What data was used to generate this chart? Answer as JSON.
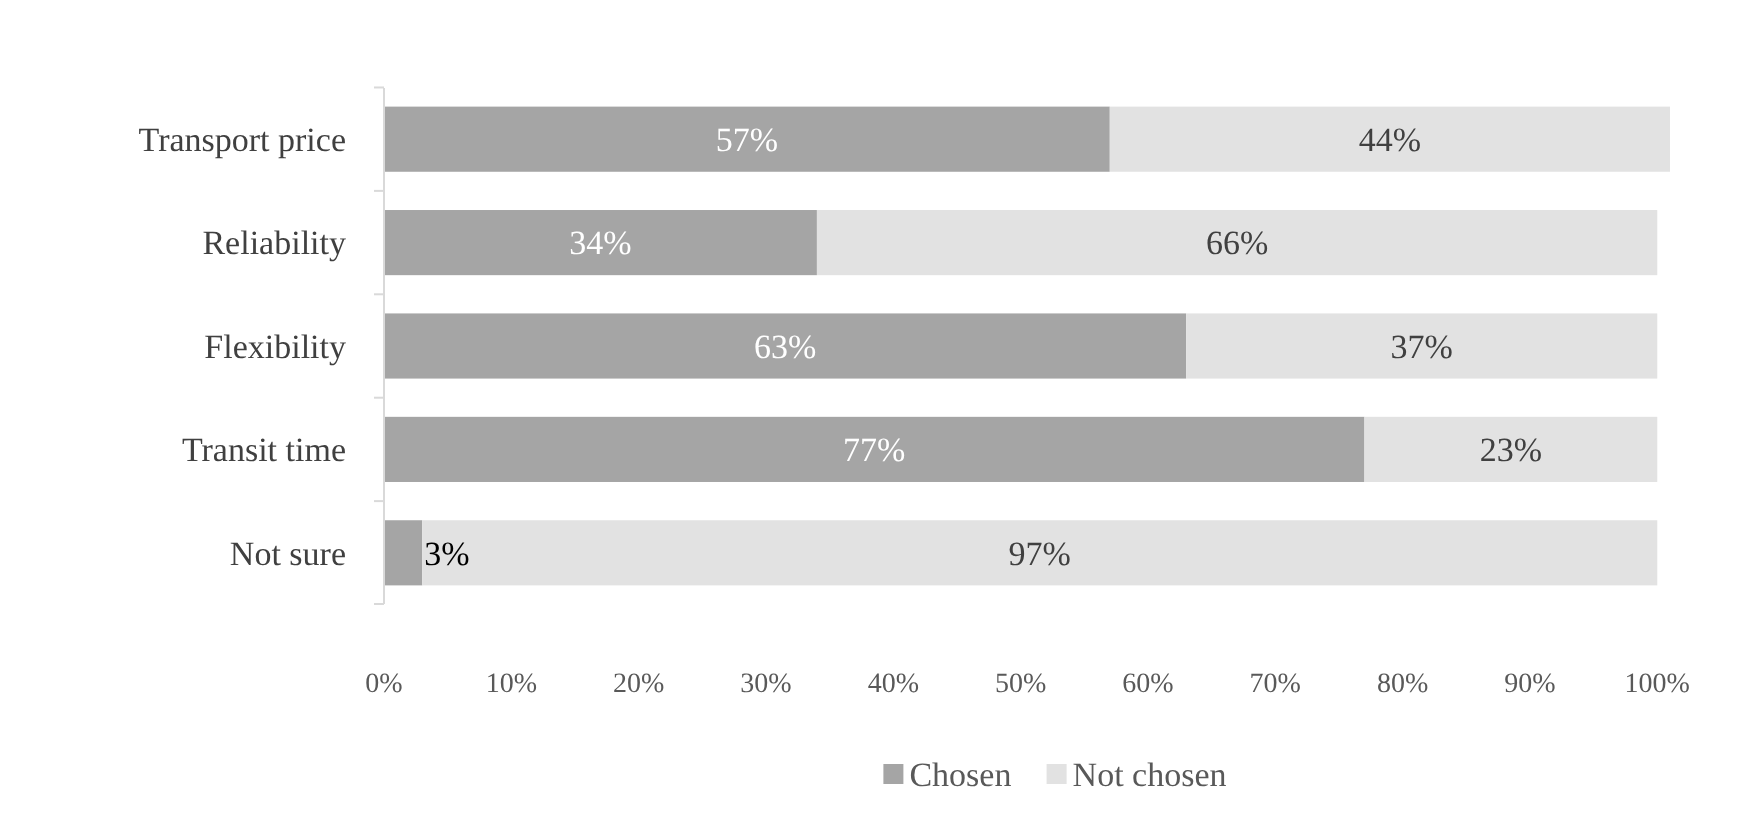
{
  "chart_data": {
    "type": "bar",
    "orientation": "horizontal",
    "stacked": true,
    "categories": [
      "Transport price",
      "Reliability",
      "Flexibility",
      "Transit time",
      "Not sure"
    ],
    "series": [
      {
        "name": "Chosen",
        "color": "#a5a5a5",
        "values": [
          57,
          34,
          63,
          77,
          3
        ],
        "value_labels": [
          "57%",
          "34%",
          "63%",
          "77%",
          "3%"
        ]
      },
      {
        "name": "Not chosen",
        "color": "#e2e2e2",
        "values": [
          44,
          66,
          37,
          23,
          97
        ],
        "value_labels": [
          "44%",
          "66%",
          "37%",
          "23%",
          "97%"
        ]
      }
    ],
    "xlim": [
      0,
      101
    ],
    "xticks": [
      {
        "value": 0,
        "label": "0%"
      },
      {
        "value": 10,
        "label": "10%"
      },
      {
        "value": 20,
        "label": "20%"
      },
      {
        "value": 30,
        "label": "30%"
      },
      {
        "value": 40,
        "label": "40%"
      },
      {
        "value": 50,
        "label": "50%"
      },
      {
        "value": 60,
        "label": "60%"
      },
      {
        "value": 70,
        "label": "70%"
      },
      {
        "value": 80,
        "label": "80%"
      },
      {
        "value": 90,
        "label": "90%"
      },
      {
        "value": 100,
        "label": "100%"
      }
    ],
    "grid": false,
    "legend": "bottom"
  }
}
